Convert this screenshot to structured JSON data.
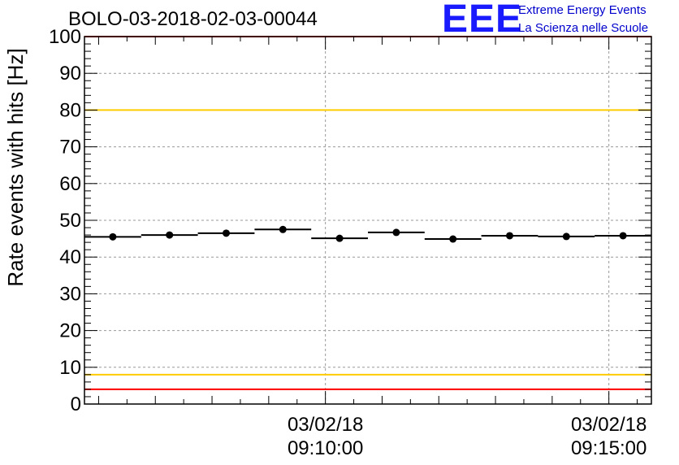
{
  "title": "BOLO-03-2018-02-03-00044",
  "logo": {
    "mark": "EEE",
    "line1": "Extreme Energy Events",
    "line2": "La Scienza nelle Scuole"
  },
  "colors": {
    "threshold_red": "#ff0000",
    "threshold_yellow": "#ffcc00",
    "logo_blue": "#1a1aff",
    "data": "#000000",
    "grid": "#999999"
  },
  "chart_data": {
    "type": "scatter",
    "ylabel": "Rate events with hits [Hz]",
    "ylim": [
      0,
      100
    ],
    "yticks": [
      0,
      10,
      20,
      30,
      40,
      50,
      60,
      70,
      80,
      90,
      100
    ],
    "xlim": [
      "03/02/18 09:05:45",
      "03/02/18 09:15:45"
    ],
    "xticks": [
      {
        "date": "03/02/18",
        "time": "09:10:00"
      },
      {
        "date": "03/02/18",
        "time": "09:15:00"
      }
    ],
    "grid": true,
    "bin_width_seconds": 60,
    "series": [
      {
        "x": [
          "09:06:15",
          "09:07:15",
          "09:08:15",
          "09:09:15",
          "09:10:15",
          "09:11:15",
          "09:12:15",
          "09:13:15",
          "09:14:15",
          "09:15:15"
        ],
        "y": [
          45.5,
          46.0,
          46.5,
          47.5,
          45.1,
          46.7,
          44.9,
          45.8,
          45.6,
          45.8
        ]
      }
    ],
    "threshold_lines": [
      {
        "y": 100,
        "color": "red"
      },
      {
        "y": 80,
        "color": "yellow"
      },
      {
        "y": 8,
        "color": "yellow"
      },
      {
        "y": 4,
        "color": "red"
      }
    ]
  }
}
